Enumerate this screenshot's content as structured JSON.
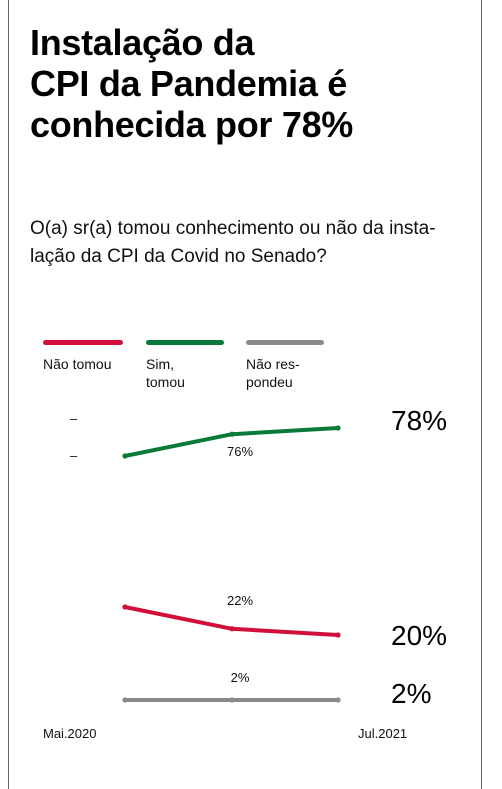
{
  "title_lines": [
    "Instalação da",
    "CPI da Pandemia é",
    "conhecida por 78%"
  ],
  "question_lines": [
    "O(a) sr(a) tomou conhecimento ou não da insta-",
    "lação da CPI da Covid no Senado?"
  ],
  "legend": [
    {
      "lines": [
        "Não tomou"
      ],
      "color": "#d0103a"
    },
    {
      "lines": [
        "Sim,",
        "tomou"
      ],
      "color": "#0a7a3a"
    },
    {
      "lines": [
        "Não res-",
        "pondeu"
      ],
      "color": "#8a8a8a"
    }
  ],
  "chart_data": {
    "type": "line",
    "x": [
      "Mai.2020",
      "",
      "Jul.2021"
    ],
    "x_labels_shown": [
      "Mai.2020",
      "Jul.2021"
    ],
    "ylim": [
      0,
      100
    ],
    "grid": false,
    "legend_placement": "top",
    "series": [
      {
        "name": "Sim, tomou",
        "color": "#0a7a3a",
        "values": [
          69,
          76,
          78
        ],
        "mid_label": "76%",
        "end_label": "78%"
      },
      {
        "name": "Não tomou",
        "color": "#d0103a",
        "values": [
          29,
          22,
          20
        ],
        "mid_label": "22%",
        "end_label": "20%"
      },
      {
        "name": "Não respondeu",
        "color": "#8a8a8a",
        "values": [
          2,
          2,
          2
        ],
        "mid_label": "2%",
        "end_label": "2%"
      }
    ],
    "dash_ticks": [
      "–",
      "–"
    ]
  }
}
